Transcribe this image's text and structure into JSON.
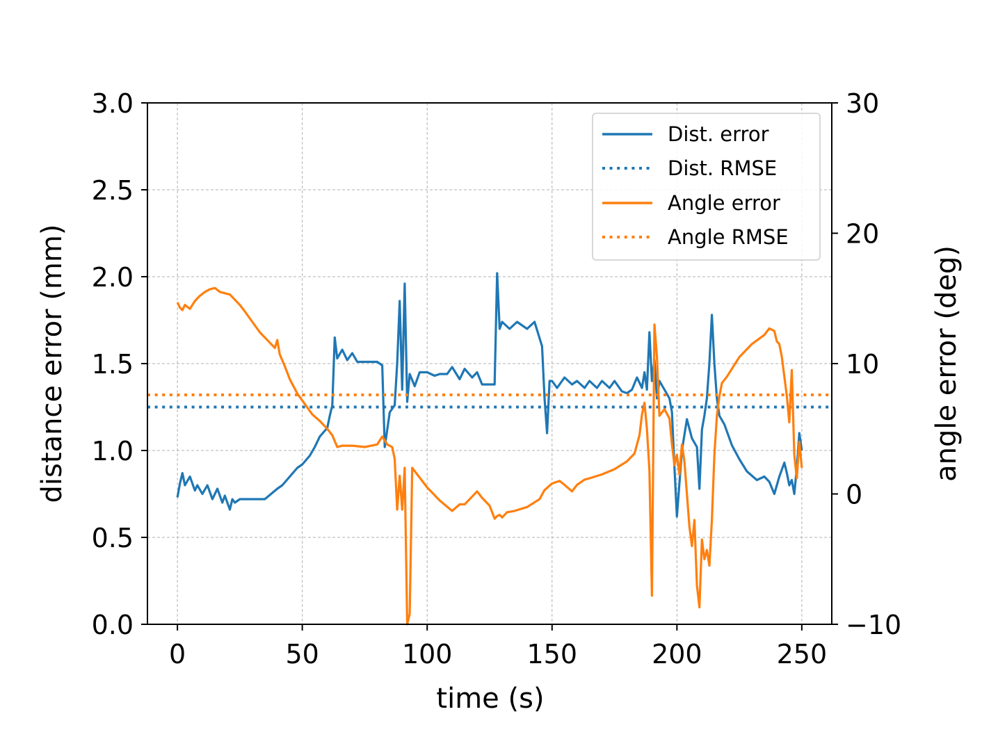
{
  "chart_data": {
    "type": "line",
    "title": "",
    "xlabel": "time (s)",
    "ylabel": "distance error (mm)",
    "y2label": "angle error (deg)",
    "xlim": [
      -12,
      262
    ],
    "ylim": [
      0,
      3.0
    ],
    "y2lim": [
      -10,
      30
    ],
    "xticks": [
      0,
      50,
      100,
      150,
      200,
      250
    ],
    "yticks": [
      0.0,
      0.5,
      1.0,
      1.5,
      2.0,
      2.5,
      3.0
    ],
    "y2ticks": [
      -10,
      0,
      10,
      20,
      30
    ],
    "xtick_labels": [
      "0",
      "50",
      "100",
      "150",
      "200",
      "250"
    ],
    "ytick_labels": [
      "0.0",
      "0.5",
      "1.0",
      "1.5",
      "2.0",
      "2.5",
      "3.0"
    ],
    "y2tick_labels": [
      "−10",
      "0",
      "10",
      "20",
      "30"
    ],
    "grid": true,
    "legend_position": "top-right",
    "colors": {
      "dist": "#1f77b4",
      "angle": "#ff7f0e",
      "grid": "#b0b0b0"
    },
    "series": [
      {
        "name": "Dist. error",
        "axis": "left",
        "style": "solid",
        "x": [
          0,
          1,
          2,
          3,
          5,
          7,
          8,
          10,
          12,
          14,
          16,
          18,
          19,
          21,
          22,
          23,
          25,
          30,
          35,
          40,
          42,
          45,
          48,
          50,
          53,
          55,
          57,
          60,
          61,
          62,
          63,
          64,
          66,
          68,
          70,
          72,
          75,
          78,
          80,
          82,
          83,
          85,
          87,
          88,
          89,
          90,
          91,
          92,
          93,
          95,
          97,
          100,
          103,
          105,
          108,
          110,
          113,
          115,
          118,
          120,
          122,
          125,
          127,
          128,
          129,
          130,
          133,
          136,
          140,
          143,
          146,
          147,
          148,
          149,
          150,
          152,
          155,
          158,
          160,
          163,
          165,
          168,
          170,
          173,
          175,
          178,
          180,
          182,
          184,
          186,
          187,
          188,
          189,
          190,
          191,
          192,
          193,
          195,
          197,
          198,
          199,
          200,
          202,
          204,
          206,
          208,
          209,
          210,
          211,
          212,
          213,
          214,
          215,
          216,
          217,
          219,
          222,
          225,
          228,
          232,
          235,
          237,
          239,
          241,
          243,
          244,
          245,
          246,
          247,
          248,
          249,
          250
        ],
        "values": [
          0.73,
          0.81,
          0.87,
          0.8,
          0.85,
          0.77,
          0.8,
          0.75,
          0.8,
          0.72,
          0.78,
          0.7,
          0.74,
          0.66,
          0.72,
          0.7,
          0.72,
          0.72,
          0.72,
          0.78,
          0.8,
          0.85,
          0.9,
          0.92,
          0.97,
          1.02,
          1.08,
          1.13,
          1.2,
          1.26,
          1.65,
          1.53,
          1.58,
          1.52,
          1.56,
          1.51,
          1.51,
          1.51,
          1.51,
          1.49,
          1.02,
          1.22,
          1.26,
          1.5,
          1.86,
          1.35,
          1.96,
          1.28,
          1.44,
          1.37,
          1.45,
          1.45,
          1.43,
          1.44,
          1.44,
          1.48,
          1.41,
          1.47,
          1.42,
          1.45,
          1.38,
          1.38,
          1.38,
          2.02,
          1.7,
          1.74,
          1.7,
          1.74,
          1.7,
          1.74,
          1.6,
          1.3,
          1.1,
          1.4,
          1.4,
          1.36,
          1.42,
          1.38,
          1.4,
          1.36,
          1.4,
          1.36,
          1.4,
          1.36,
          1.4,
          1.34,
          1.33,
          1.35,
          1.42,
          1.36,
          1.45,
          1.35,
          1.68,
          1.4,
          1.52,
          1.3,
          1.4,
          1.35,
          1.3,
          1.22,
          0.9,
          0.62,
          1.0,
          1.18,
          1.07,
          1.02,
          0.78,
          1.12,
          1.2,
          1.3,
          1.5,
          1.78,
          1.5,
          1.3,
          1.2,
          1.15,
          1.03,
          0.95,
          0.88,
          0.83,
          0.85,
          0.82,
          0.75,
          0.85,
          0.93,
          0.87,
          0.8,
          0.83,
          0.75,
          0.9,
          1.1,
          1.0
        ]
      },
      {
        "name": "Dist. RMSE",
        "axis": "left",
        "style": "dotted",
        "x": [
          -12,
          262
        ],
        "values": [
          1.25,
          1.25
        ]
      },
      {
        "name": "Angle error",
        "axis": "right",
        "style": "solid",
        "x": [
          0,
          1,
          2,
          3,
          5,
          7,
          9,
          11,
          13,
          15,
          17,
          19,
          21,
          23,
          25,
          27,
          30,
          33,
          36,
          39,
          40,
          41,
          43,
          45,
          48,
          51,
          54,
          57,
          60,
          62,
          64,
          66,
          70,
          75,
          80,
          82,
          84,
          86,
          87,
          88,
          89,
          90,
          91,
          92,
          93,
          94,
          96,
          100,
          105,
          110,
          113,
          115,
          118,
          120,
          122,
          125,
          127,
          128,
          129,
          130,
          132,
          135,
          140,
          145,
          147,
          150,
          153,
          155,
          158,
          160,
          163,
          165,
          170,
          175,
          180,
          183,
          185,
          186,
          187,
          188,
          189,
          190,
          191,
          192,
          193,
          195,
          197,
          198,
          199,
          200,
          201,
          202,
          203,
          204,
          205,
          206,
          207,
          208,
          209,
          210,
          211,
          212,
          213,
          214,
          215,
          216,
          217,
          218,
          220,
          225,
          230,
          235,
          237,
          239,
          240,
          241,
          242,
          243,
          244,
          245,
          246,
          247,
          248,
          249,
          250
        ],
        "values": [
          14.7,
          14.3,
          14.1,
          14.5,
          14.2,
          14.8,
          15.2,
          15.5,
          15.7,
          15.8,
          15.5,
          15.4,
          15.3,
          14.9,
          14.5,
          14.0,
          13.2,
          12.4,
          11.8,
          11.2,
          11.8,
          10.7,
          9.8,
          8.8,
          7.7,
          6.9,
          6.1,
          5.6,
          5.0,
          4.5,
          3.6,
          3.7,
          3.7,
          3.6,
          3.8,
          4.4,
          3.8,
          3.6,
          2.7,
          -1.2,
          1.4,
          -1.2,
          2.0,
          -10.0,
          -9.2,
          2.0,
          1.5,
          0.5,
          -0.5,
          -1.3,
          -0.8,
          -0.8,
          -0.2,
          0.2,
          -0.3,
          -0.9,
          -1.9,
          -1.7,
          -1.6,
          -1.8,
          -1.4,
          -1.3,
          -1.0,
          -0.4,
          0.3,
          0.8,
          1.0,
          0.7,
          0.2,
          0.7,
          1.1,
          1.2,
          1.5,
          1.9,
          2.5,
          3.1,
          4.5,
          6.1,
          7.0,
          5.0,
          1.8,
          -7.8,
          13.0,
          10.5,
          6.0,
          6.5,
          5.8,
          3.8,
          2.2,
          3.0,
          1.5,
          3.8,
          2.5,
          0.0,
          -2.5,
          -4.0,
          -2.0,
          -7.0,
          -8.7,
          -3.5,
          -5.0,
          -4.3,
          -5.5,
          -2.0,
          3.0,
          6.0,
          7.5,
          8.5,
          9.0,
          10.5,
          11.5,
          12.2,
          12.7,
          12.5,
          11.7,
          11.5,
          10.5,
          9.0,
          7.5,
          5.5,
          9.5,
          3.0,
          1.2,
          4.0,
          2.0
        ]
      },
      {
        "name": "Angle RMSE",
        "axis": "right",
        "style": "dotted",
        "x": [
          -12,
          262
        ],
        "values": [
          7.6,
          7.6
        ]
      }
    ]
  }
}
